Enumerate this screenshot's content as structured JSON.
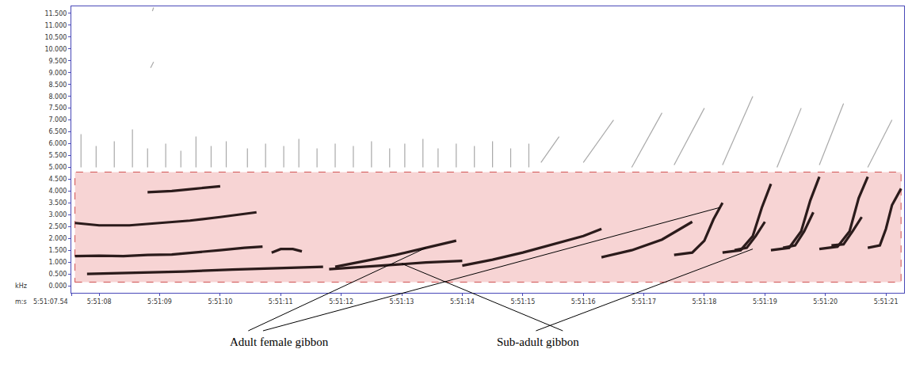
{
  "chart_data": {
    "type": "spectrogram",
    "x_label": "m:s",
    "y_label": "kHz",
    "xlim": [
      7.54,
      21.3
    ],
    "xticks": [
      {
        "value": 7.54,
        "label": "5:51:07.54"
      },
      {
        "value": 8,
        "label": "5:51:08"
      },
      {
        "value": 9,
        "label": "5:51:09"
      },
      {
        "value": 10,
        "label": "5:51:10"
      },
      {
        "value": 11,
        "label": "5:51:11"
      },
      {
        "value": 12,
        "label": "5:51:12"
      },
      {
        "value": 13,
        "label": "5:51:13"
      },
      {
        "value": 14,
        "label": "5:51:14"
      },
      {
        "value": 15,
        "label": "5:51:15"
      },
      {
        "value": 16,
        "label": "5:51:16"
      },
      {
        "value": 17,
        "label": "5:51:17"
      },
      {
        "value": 18,
        "label": "5:51:18"
      },
      {
        "value": 19,
        "label": "5:51:19"
      },
      {
        "value": 20,
        "label": "5:51:20"
      },
      {
        "value": 21,
        "label": "5:51:21"
      }
    ],
    "ylim": [
      -0.3,
      11.8
    ],
    "yticks": [
      {
        "value": 0,
        "label": "0.000"
      },
      {
        "value": 0.5,
        "label": "0.500"
      },
      {
        "value": 1,
        "label": "1.000"
      },
      {
        "value": 1.5,
        "label": "1.500"
      },
      {
        "value": 2,
        "label": "2.000"
      },
      {
        "value": 2.5,
        "label": "2.500"
      },
      {
        "value": 3,
        "label": "3.000"
      },
      {
        "value": 3.5,
        "label": "3.500"
      },
      {
        "value": 4,
        "label": "4.000"
      },
      {
        "value": 4.5,
        "label": "4.500"
      },
      {
        "value": 5,
        "label": "5.000"
      },
      {
        "value": 5.5,
        "label": "5.500"
      },
      {
        "value": 6,
        "label": "6.000"
      },
      {
        "value": 6.5,
        "label": "6.500"
      },
      {
        "value": 7,
        "label": "7.000"
      },
      {
        "value": 7.5,
        "label": "7.500"
      },
      {
        "value": 8,
        "label": "8.000"
      },
      {
        "value": 8.5,
        "label": "8.500"
      },
      {
        "value": 9,
        "label": "9.000"
      },
      {
        "value": 9.5,
        "label": "9.500"
      },
      {
        "value": 10,
        "label": "10.000"
      },
      {
        "value": 10.5,
        "label": "10.500"
      },
      {
        "value": 11,
        "label": "11.000"
      },
      {
        "value": 11.5,
        "label": "11.500"
      }
    ],
    "grid": false,
    "selection": {
      "x": [
        7.6,
        21.25
      ],
      "y": [
        0.15,
        4.8
      ],
      "color": "#f7d4d4"
    },
    "series": [
      {
        "color": "#a9a9a9",
        "x": [
          7.7,
          7.7,
          null,
          7.95,
          7.95,
          null,
          8.25,
          8.25,
          null,
          8.55,
          8.55,
          null,
          8.8,
          8.8,
          null,
          9.1,
          9.1,
          null,
          9.35,
          9.35,
          null,
          9.6,
          9.6,
          null,
          9.85,
          9.85,
          null,
          10.1,
          10.1,
          null,
          10.45,
          10.45,
          null,
          10.75,
          10.75,
          null,
          11.05,
          11.05,
          null,
          11.3,
          11.3,
          null,
          11.6,
          11.6,
          null,
          11.9,
          11.9,
          null,
          12.2,
          12.2,
          null,
          12.5,
          12.5,
          null,
          12.8,
          12.8,
          null,
          13.05,
          13.05,
          null,
          13.35,
          13.35,
          null,
          13.6,
          13.6,
          null,
          13.9,
          13.9,
          null,
          14.2,
          14.2,
          null,
          14.5,
          14.5,
          null,
          14.8,
          14.8,
          null,
          15.1,
          15.1,
          null,
          8.85,
          8.9,
          null,
          8.88,
          8.9,
          null,
          15.3,
          15.6,
          null,
          16.0,
          16.5,
          null,
          16.8,
          17.3,
          null,
          17.5,
          18.0,
          null,
          18.3,
          18.8,
          null,
          19.2,
          19.6,
          null,
          19.9,
          20.3,
          null,
          20.7,
          21.1
        ],
        "y": [
          5.0,
          6.4,
          null,
          5.0,
          5.9,
          null,
          5.0,
          6.1,
          null,
          5.0,
          6.6,
          null,
          5.0,
          5.8,
          null,
          5.0,
          6.0,
          null,
          5.0,
          5.7,
          null,
          5.0,
          6.3,
          null,
          5.0,
          5.9,
          null,
          5.0,
          6.1,
          null,
          5.0,
          5.8,
          null,
          5.0,
          6.0,
          null,
          5.0,
          5.9,
          null,
          5.0,
          6.2,
          null,
          5.0,
          5.8,
          null,
          5.0,
          6.0,
          null,
          5.0,
          5.9,
          null,
          5.0,
          6.1,
          null,
          5.0,
          5.8,
          null,
          5.0,
          6.0,
          null,
          5.0,
          6.2,
          null,
          5.0,
          5.8,
          null,
          5.0,
          6.0,
          null,
          5.0,
          5.9,
          null,
          5.0,
          6.1,
          null,
          5.0,
          5.8,
          null,
          5.0,
          6.0,
          null,
          9.2,
          9.45,
          null,
          11.6,
          11.75,
          null,
          5.2,
          6.3,
          null,
          5.2,
          7.0,
          null,
          5.0,
          7.3,
          null,
          5.1,
          7.5,
          null,
          5.1,
          8.0,
          null,
          5.0,
          7.5,
          null,
          5.1,
          7.7,
          null,
          5.0,
          7.0
        ]
      },
      {
        "color": "#2b1b1b",
        "x": [
          7.6,
          8.0,
          8.4,
          8.8,
          9.2,
          9.6,
          10.0,
          10.4,
          10.7,
          null,
          10.85,
          11.0,
          11.2,
          11.35,
          null,
          7.8,
          8.6,
          9.4,
          10.2,
          11.0,
          11.7,
          null,
          7.6,
          8.0,
          8.5,
          9.0,
          9.5,
          10.0,
          10.6,
          null,
          8.8,
          9.2,
          9.6,
          10.0,
          null,
          11.9,
          12.4,
          12.9,
          13.4,
          13.9,
          null,
          11.8,
          12.6,
          13.4,
          14.0,
          null,
          14.0,
          14.5,
          15.0,
          15.5,
          16.0,
          16.3,
          null,
          16.3,
          16.8,
          17.3,
          17.8,
          null,
          17.5,
          17.8,
          18.0,
          18.15,
          18.3,
          null,
          18.3,
          18.6,
          18.8,
          18.95,
          19.1,
          null,
          19.1,
          19.4,
          19.6,
          19.75,
          19.9,
          null,
          19.9,
          20.2,
          20.4,
          20.55,
          20.7,
          null,
          20.7,
          20.9,
          21.0,
          21.1,
          21.25,
          null,
          18.5,
          18.7,
          18.85,
          19.0,
          null,
          19.3,
          19.5,
          19.65,
          19.8,
          null,
          20.1,
          20.3,
          20.45,
          20.6
        ],
        "y": [
          1.25,
          1.27,
          1.25,
          1.3,
          1.32,
          1.4,
          1.5,
          1.6,
          1.65,
          null,
          1.4,
          1.55,
          1.55,
          1.45,
          null,
          0.5,
          0.55,
          0.6,
          0.68,
          0.75,
          0.8,
          null,
          2.65,
          2.55,
          2.55,
          2.65,
          2.75,
          2.9,
          3.1,
          null,
          3.95,
          4.0,
          4.1,
          4.2,
          null,
          0.8,
          1.05,
          1.3,
          1.6,
          1.9,
          null,
          0.7,
          0.85,
          0.98,
          1.05,
          null,
          0.85,
          1.1,
          1.4,
          1.75,
          2.1,
          2.4,
          null,
          1.2,
          1.5,
          1.95,
          2.7,
          null,
          1.3,
          1.4,
          1.9,
          2.8,
          3.5,
          null,
          1.4,
          1.5,
          2.1,
          3.3,
          4.3,
          null,
          1.5,
          1.6,
          2.3,
          3.6,
          4.6,
          null,
          1.55,
          1.65,
          2.3,
          3.7,
          4.6,
          null,
          1.6,
          1.7,
          2.4,
          3.4,
          4.1,
          null,
          1.5,
          1.6,
          2.1,
          2.7,
          null,
          1.6,
          1.7,
          2.3,
          3.1,
          null,
          1.7,
          1.75,
          2.3,
          2.9
        ]
      }
    ],
    "annotations": [
      {
        "text": "Adult female gibbon",
        "points": [
          {
            "x": 13.4,
            "y": 1.6
          },
          {
            "x": 18.25,
            "y": 3.3
          }
        ]
      },
      {
        "text": "Sub-adult gibbon",
        "points": [
          {
            "x": 13.0,
            "y": 0.93
          },
          {
            "x": 18.8,
            "y": 1.55
          }
        ]
      }
    ]
  }
}
